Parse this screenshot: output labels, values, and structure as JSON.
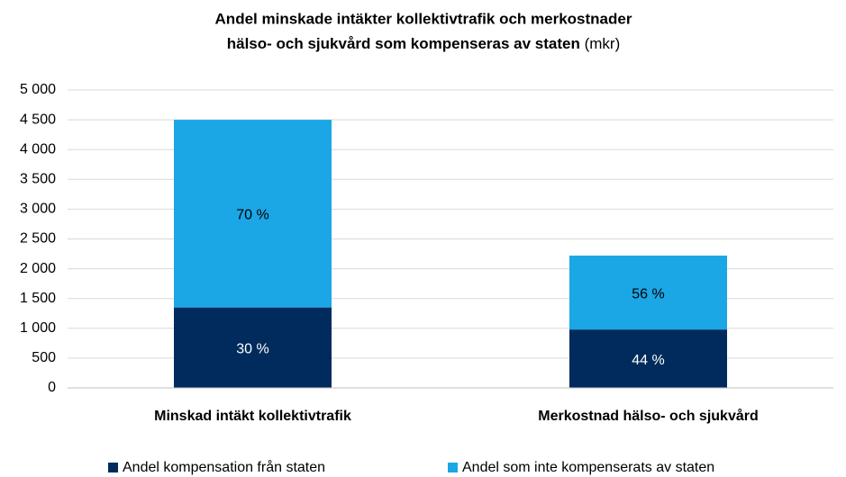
{
  "chart_data": {
    "type": "stacked_bar",
    "title": [
      "Andel minskade intäkter kollektivtrafik och merkostnader",
      "hälso- och sjukvård som kompenseras av staten"
    ],
    "title_unit": "(mkr)",
    "categories": [
      "Minskad intäkt kollektivtrafik",
      "Merkostnad hälso- och sjukvård"
    ],
    "series": [
      {
        "name": "Andel kompensation från staten",
        "color": "#002b5c",
        "values": [
          1350,
          980
        ],
        "share_labels": [
          "30 %",
          "44 %"
        ]
      },
      {
        "name": "Andel som inte kompenserats av staten",
        "color": "#1ba6e6",
        "values": [
          3150,
          1240
        ],
        "share_labels": [
          "70 %",
          "56 %"
        ]
      }
    ],
    "ylim": [
      0,
      5000
    ],
    "yticks": [
      0,
      500,
      {
        "value": 1000,
        "label": "1 000"
      },
      {
        "value": 1500,
        "label": "1 500"
      },
      {
        "value": 2000,
        "label": "2 000"
      },
      {
        "value": 2500,
        "label": "2 500"
      },
      {
        "value": 3000,
        "label": "3 000"
      },
      {
        "value": 3500,
        "label": "3 500"
      },
      {
        "value": 4000,
        "label": "4 000"
      },
      {
        "value": 4500,
        "label": "4 500"
      },
      {
        "value": 5000,
        "label": "5 000"
      }
    ],
    "grid": true,
    "legend": "bottom"
  }
}
